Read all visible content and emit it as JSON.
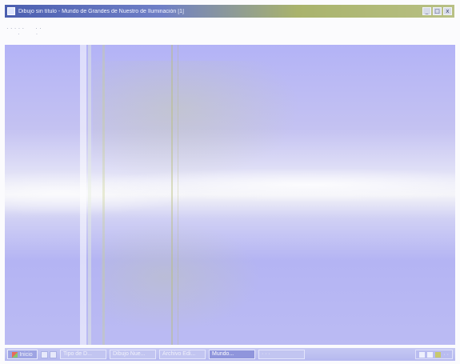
{
  "window": {
    "title": "Dibujo sin título - Mundo de Grandes de Nuestro de Iluminación [1]",
    "controls": {
      "minimize": "_",
      "maximize": "□",
      "close": "x"
    }
  },
  "menubar": {
    "items": [
      "· · · · ·",
      "· ·"
    ],
    "sub_items": [
      "·",
      "·"
    ]
  },
  "taskbar": {
    "start_label": "Inicio",
    "tasks": [
      {
        "label": "Tipo de D..."
      },
      {
        "label": "Dibujo Nue..."
      },
      {
        "label": "Archivo Edi..."
      },
      {
        "label": "Mundo..."
      },
      {
        "label": "· · ·"
      }
    ],
    "clock": "· ·"
  },
  "colors": {
    "desktop": "#b4b4f3",
    "title_start": "#4b5fb0",
    "title_end": "#b8c084"
  },
  "icons": {
    "title": "app-icon",
    "start": "windows-logo-icon"
  }
}
